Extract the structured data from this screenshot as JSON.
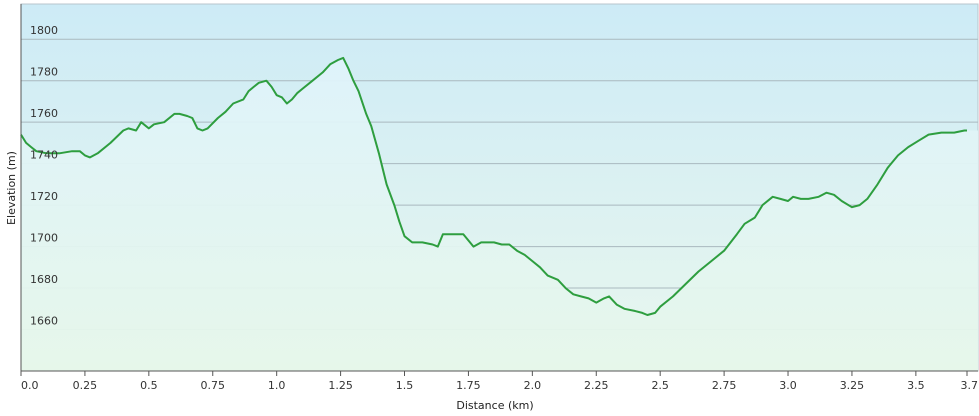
{
  "chart_data": {
    "type": "area",
    "title": "",
    "xlabel": "Distance  (km)",
    "ylabel": "Elevation (m)",
    "xlim": [
      0,
      3.7
    ],
    "ylim": [
      1640,
      1817
    ],
    "x_ticks": [
      0,
      0.25,
      0.5,
      0.75,
      1.0,
      1.25,
      1.5,
      1.75,
      2.0,
      2.25,
      2.5,
      2.75,
      3.0,
      3.25,
      3.5,
      3.7
    ],
    "x_tick_labels": [
      "0.0",
      "0.25",
      "0.5",
      "0.75",
      "1.0",
      "1.25",
      "1.5",
      "1.75",
      "2.0",
      "2.25",
      "2.5",
      "2.75",
      "3.0",
      "3.25",
      "3.5",
      "3.7"
    ],
    "y_ticks": [
      1660,
      1680,
      1700,
      1720,
      1740,
      1760,
      1780,
      1800
    ],
    "y_tick_labels": [
      "1660",
      "1680",
      "1700",
      "1720",
      "1740",
      "1760",
      "1780",
      "1800"
    ],
    "grid": true,
    "line_color": "#2e9e3f",
    "fill_top_color": "#dff3fb",
    "fill_bottom_color": "#e6f7ea",
    "background_top_color": "#cdebf6",
    "background_bottom_color": "#e9f7ee",
    "series": [
      {
        "values": [
          [
            0.0,
            1754
          ],
          [
            0.02,
            1750
          ],
          [
            0.04,
            1748
          ],
          [
            0.06,
            1746
          ],
          [
            0.1,
            1745
          ],
          [
            0.15,
            1745
          ],
          [
            0.2,
            1746
          ],
          [
            0.23,
            1746
          ],
          [
            0.25,
            1744
          ],
          [
            0.27,
            1743
          ],
          [
            0.3,
            1745
          ],
          [
            0.35,
            1750
          ],
          [
            0.4,
            1756
          ],
          [
            0.42,
            1757
          ],
          [
            0.45,
            1756
          ],
          [
            0.47,
            1760
          ],
          [
            0.5,
            1757
          ],
          [
            0.52,
            1759
          ],
          [
            0.56,
            1760
          ],
          [
            0.6,
            1764
          ],
          [
            0.62,
            1764
          ],
          [
            0.65,
            1763
          ],
          [
            0.67,
            1762
          ],
          [
            0.69,
            1757
          ],
          [
            0.71,
            1756
          ],
          [
            0.73,
            1757
          ],
          [
            0.77,
            1762
          ],
          [
            0.8,
            1765
          ],
          [
            0.83,
            1769
          ],
          [
            0.87,
            1771
          ],
          [
            0.89,
            1775
          ],
          [
            0.91,
            1777
          ],
          [
            0.93,
            1779
          ],
          [
            0.96,
            1780
          ],
          [
            0.98,
            1777
          ],
          [
            1.0,
            1773
          ],
          [
            1.02,
            1772
          ],
          [
            1.04,
            1769
          ],
          [
            1.06,
            1771
          ],
          [
            1.08,
            1774
          ],
          [
            1.1,
            1776
          ],
          [
            1.14,
            1780
          ],
          [
            1.18,
            1784
          ],
          [
            1.21,
            1788
          ],
          [
            1.24,
            1790
          ],
          [
            1.26,
            1791
          ],
          [
            1.28,
            1786
          ],
          [
            1.3,
            1780
          ],
          [
            1.32,
            1775
          ],
          [
            1.35,
            1764
          ],
          [
            1.37,
            1758
          ],
          [
            1.4,
            1745
          ],
          [
            1.43,
            1730
          ],
          [
            1.46,
            1720
          ],
          [
            1.48,
            1712
          ],
          [
            1.5,
            1705
          ],
          [
            1.53,
            1702
          ],
          [
            1.57,
            1702
          ],
          [
            1.61,
            1701
          ],
          [
            1.63,
            1700
          ],
          [
            1.65,
            1706
          ],
          [
            1.7,
            1706
          ],
          [
            1.73,
            1706
          ],
          [
            1.77,
            1700
          ],
          [
            1.8,
            1702
          ],
          [
            1.85,
            1702
          ],
          [
            1.88,
            1701
          ],
          [
            1.91,
            1701
          ],
          [
            1.94,
            1698
          ],
          [
            1.97,
            1696
          ],
          [
            2.0,
            1693
          ],
          [
            2.03,
            1690
          ],
          [
            2.06,
            1686
          ],
          [
            2.1,
            1684
          ],
          [
            2.13,
            1680
          ],
          [
            2.16,
            1677
          ],
          [
            2.19,
            1676
          ],
          [
            2.22,
            1675
          ],
          [
            2.25,
            1673
          ],
          [
            2.28,
            1675
          ],
          [
            2.3,
            1676
          ],
          [
            2.33,
            1672
          ],
          [
            2.36,
            1670
          ],
          [
            2.4,
            1669
          ],
          [
            2.43,
            1668
          ],
          [
            2.45,
            1667
          ],
          [
            2.48,
            1668
          ],
          [
            2.5,
            1671
          ],
          [
            2.55,
            1676
          ],
          [
            2.6,
            1682
          ],
          [
            2.65,
            1688
          ],
          [
            2.7,
            1693
          ],
          [
            2.75,
            1698
          ],
          [
            2.8,
            1706
          ],
          [
            2.83,
            1711
          ],
          [
            2.87,
            1714
          ],
          [
            2.9,
            1720
          ],
          [
            2.94,
            1724
          ],
          [
            2.97,
            1723
          ],
          [
            3.0,
            1722
          ],
          [
            3.02,
            1724
          ],
          [
            3.05,
            1723
          ],
          [
            3.08,
            1723
          ],
          [
            3.12,
            1724
          ],
          [
            3.15,
            1726
          ],
          [
            3.18,
            1725
          ],
          [
            3.21,
            1722
          ],
          [
            3.25,
            1719
          ],
          [
            3.28,
            1720
          ],
          [
            3.31,
            1723
          ],
          [
            3.35,
            1730
          ],
          [
            3.39,
            1738
          ],
          [
            3.43,
            1744
          ],
          [
            3.47,
            1748
          ],
          [
            3.51,
            1751
          ],
          [
            3.55,
            1754
          ],
          [
            3.6,
            1755
          ],
          [
            3.65,
            1755
          ],
          [
            3.69,
            1756
          ],
          [
            3.7,
            1756
          ]
        ]
      }
    ]
  }
}
